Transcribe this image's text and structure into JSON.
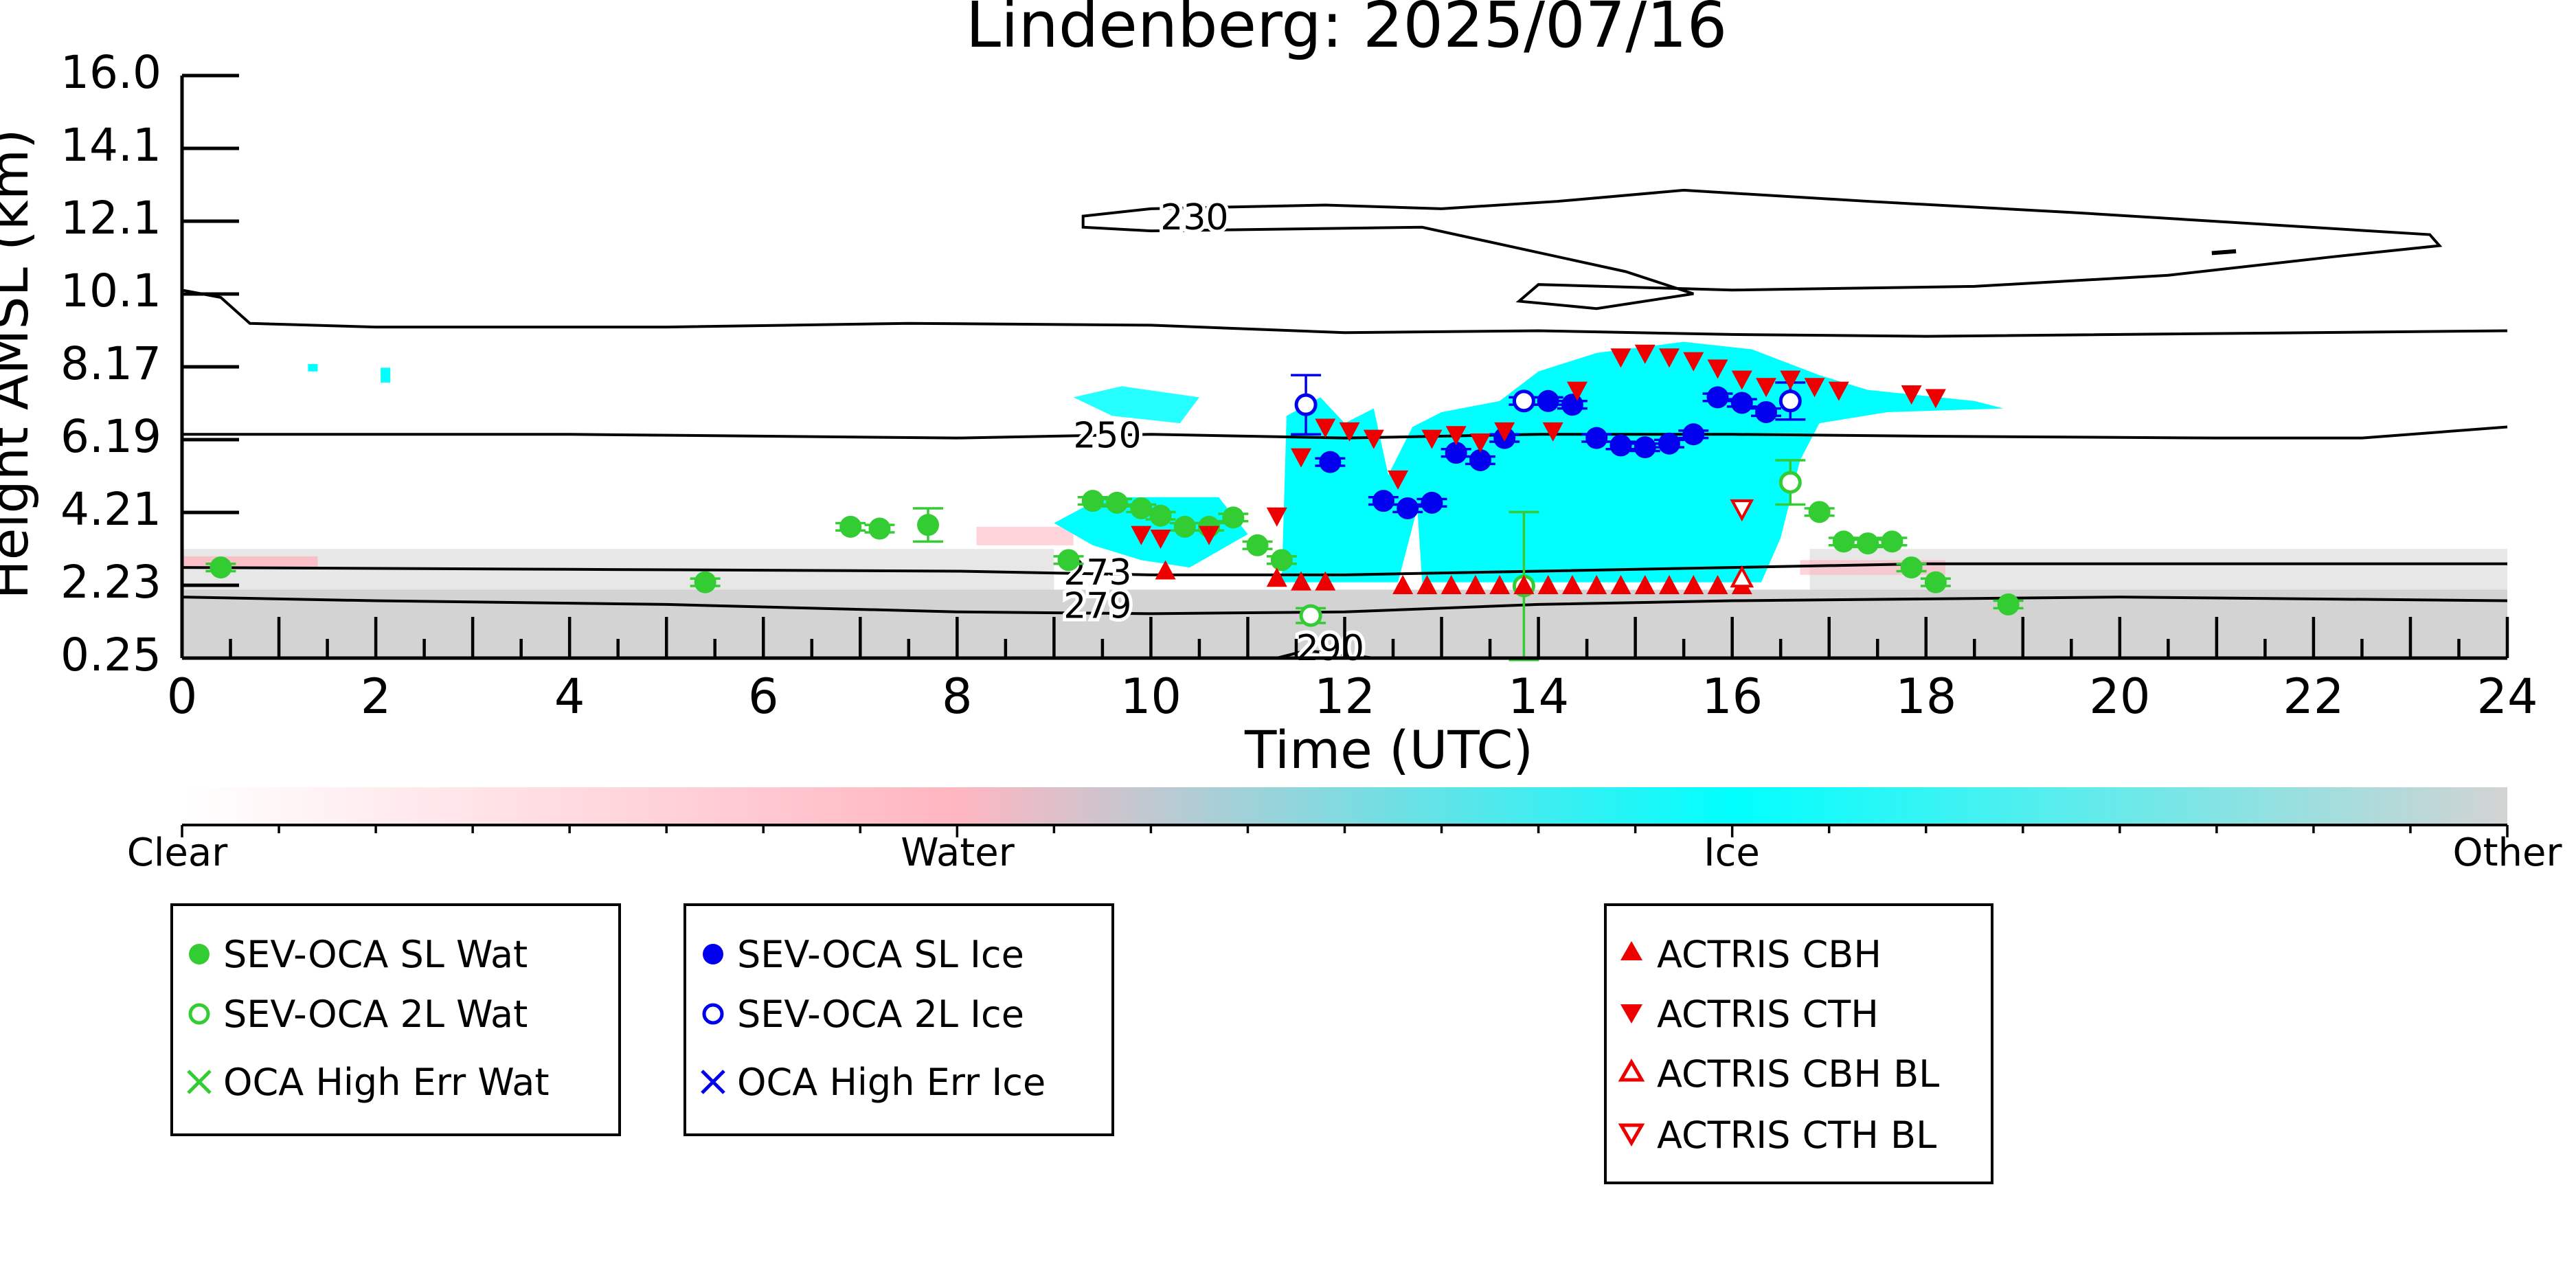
{
  "chart_data": {
    "type": "scatter",
    "title": "Lindenberg: 2025/07/16",
    "xlabel": "Time (UTC)",
    "ylabel": "Height AMSL (km)",
    "xlim": [
      0,
      24
    ],
    "ylim": [
      0.25,
      16.0
    ],
    "xticks": [
      "0",
      "2",
      "4",
      "6",
      "8",
      "10",
      "12",
      "14",
      "16",
      "18",
      "20",
      "22",
      "24"
    ],
    "yticks": [
      "0.25",
      "2.23",
      "4.21",
      "6.19",
      "8.17",
      "10.1",
      "12.1",
      "14.1",
      "16.0"
    ],
    "grid": false,
    "colorbar": {
      "labels": [
        "Clear",
        "Water",
        "Ice",
        "Other"
      ],
      "colors": {
        "clear": "#ffffff",
        "water": "#ffb6c1",
        "ice": "#00ffff",
        "other": "#d3d3d3"
      }
    },
    "contours": [
      {
        "label": "230",
        "color": "#000000"
      },
      {
        "label": "250",
        "color": "#000000"
      },
      {
        "label": "273",
        "color": "#000000"
      },
      {
        "label": "279",
        "color": "#000000"
      },
      {
        "label": "290",
        "color": "#000000"
      }
    ],
    "legends": [
      {
        "entries": [
          "SEV-OCA SL Wat",
          "SEV-OCA 2L Wat",
          "OCA High Err Wat"
        ]
      },
      {
        "entries": [
          "SEV-OCA SL Ice",
          "SEV-OCA 2L Ice",
          "OCA High Err Ice"
        ]
      },
      {
        "entries": [
          "ACTRIS CBH",
          "ACTRIS CTH",
          "ACTRIS CBH BL",
          "ACTRIS CTH BL"
        ]
      }
    ],
    "series": [
      {
        "name": "SEV-OCA SL Wat",
        "marker": "filled-circle",
        "color": "#33cc33",
        "x": [
          0.4,
          5.4,
          6.9,
          7.2,
          7.7,
          9.15,
          9.4,
          9.65,
          9.9,
          10.1,
          10.35,
          10.6,
          10.85,
          11.1,
          11.35,
          16.9,
          17.15,
          17.4,
          17.65,
          17.85,
          18.1,
          18.85
        ],
        "y": [
          2.7,
          2.3,
          3.8,
          3.75,
          3.85,
          2.9,
          4.5,
          4.45,
          4.3,
          4.1,
          3.8,
          3.8,
          4.05,
          3.3,
          2.9,
          4.2,
          3.4,
          3.35,
          3.4,
          2.7,
          2.3,
          1.7
        ],
        "yerr": [
          0.1,
          0.1,
          0.1,
          0.1,
          0.45,
          0.1,
          0.1,
          0.1,
          0.1,
          0.1,
          0.1,
          0.1,
          0.1,
          0.1,
          0.1,
          0.1,
          0.1,
          0.1,
          0.1,
          0.1,
          0.1,
          0.1
        ]
      },
      {
        "name": "SEV-OCA 2L Wat",
        "marker": "open-circle",
        "color": "#33cc33",
        "x": [
          11.65,
          13.85,
          16.6
        ],
        "y": [
          1.4,
          2.2,
          5.0
        ],
        "yerr": [
          0.2,
          2.0,
          0.6
        ]
      },
      {
        "name": "OCA High Err Wat",
        "marker": "x",
        "color": "#33cc33",
        "x": [],
        "y": []
      },
      {
        "name": "SEV-OCA SL Ice",
        "marker": "filled-circle",
        "color": "#0000ee",
        "x": [
          11.85,
          12.4,
          12.65,
          12.9,
          13.15,
          13.4,
          13.65,
          14.1,
          14.35,
          14.6,
          14.85,
          15.1,
          15.35,
          15.6,
          15.85,
          16.1,
          16.35
        ],
        "y": [
          5.55,
          4.5,
          4.3,
          4.45,
          5.8,
          5.6,
          6.2,
          7.2,
          7.1,
          6.2,
          6.0,
          5.95,
          6.05,
          6.3,
          7.3,
          7.15,
          6.9
        ],
        "yerr": [
          0.1,
          0.1,
          0.1,
          0.1,
          0.1,
          0.1,
          0.1,
          0.1,
          0.1,
          0.1,
          0.1,
          0.1,
          0.1,
          0.1,
          0.1,
          0.1,
          0.1
        ]
      },
      {
        "name": "SEV-OCA 2L Ice",
        "marker": "open-circle",
        "color": "#0000ee",
        "x": [
          11.6,
          13.85,
          16.6
        ],
        "y": [
          7.1,
          7.2,
          7.2
        ],
        "yerr": [
          0.8,
          0.1,
          0.5
        ]
      },
      {
        "name": "OCA High Err Ice",
        "marker": "x",
        "color": "#0000ee",
        "x": [],
        "y": []
      },
      {
        "name": "ACTRIS CBH",
        "marker": "triangle-up",
        "color": "#ee0000",
        "x": [
          10.15,
          11.3,
          11.55,
          11.8,
          12.6,
          12.85,
          13.1,
          13.35,
          13.6,
          13.85,
          14.1,
          14.35,
          14.6,
          14.85,
          15.1,
          15.35,
          15.6,
          15.85,
          16.1
        ],
        "y": [
          2.6,
          2.4,
          2.3,
          2.3,
          2.2,
          2.2,
          2.2,
          2.2,
          2.2,
          2.2,
          2.2,
          2.2,
          2.2,
          2.2,
          2.2,
          2.2,
          2.2,
          2.2,
          2.2
        ]
      },
      {
        "name": "ACTRIS CTH",
        "marker": "triangle-down",
        "color": "#ee0000",
        "x": [
          9.9,
          10.1,
          10.6,
          11.3,
          11.55,
          11.8,
          12.05,
          12.3,
          12.55,
          12.9,
          13.15,
          13.4,
          13.65,
          14.15,
          14.4,
          14.85,
          15.1,
          15.35,
          15.6,
          15.85,
          16.1,
          16.35,
          16.6,
          16.85,
          17.1,
          17.85,
          18.1
        ],
        "y": [
          3.6,
          3.5,
          3.6,
          4.1,
          5.7,
          6.5,
          6.4,
          6.2,
          5.1,
          6.2,
          6.3,
          6.1,
          6.4,
          6.4,
          7.5,
          8.4,
          8.5,
          8.4,
          8.3,
          8.1,
          7.8,
          7.6,
          7.8,
          7.6,
          7.5,
          7.4,
          7.3
        ]
      },
      {
        "name": "ACTRIS CBH BL",
        "marker": "open-triangle-up",
        "color": "#ee0000",
        "x": [
          16.1
        ],
        "y": [
          2.4
        ]
      },
      {
        "name": "ACTRIS CTH BL",
        "marker": "open-triangle-down",
        "color": "#ee0000",
        "x": [
          16.1
        ],
        "y": [
          4.3
        ]
      }
    ]
  }
}
